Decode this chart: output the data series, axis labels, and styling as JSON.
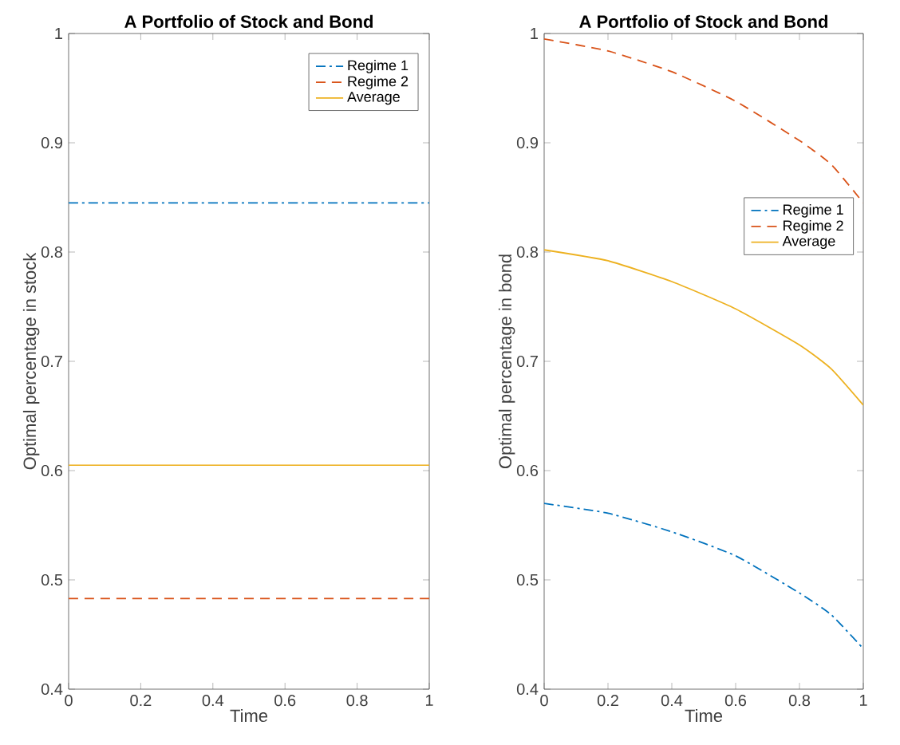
{
  "chart_data": [
    {
      "type": "line",
      "title": "A Portfolio of Stock and Bond",
      "xlabel": "Time",
      "ylabel": "Optimal percentage in stock",
      "x": [
        0,
        1
      ],
      "xlim": [
        0,
        1
      ],
      "ylim": [
        0.4,
        1
      ],
      "xticks": [
        0,
        0.2,
        0.4,
        0.6,
        0.8,
        1
      ],
      "yticks": [
        0.4,
        0.5,
        0.6,
        0.7,
        0.8,
        0.9,
        1
      ],
      "legend": "top right",
      "marker": "none",
      "grid": false,
      "series": [
        {
          "name": "Regime 1",
          "color": "#0072bd",
          "line_style": "dashdot",
          "values": [
            0.845,
            0.845
          ]
        },
        {
          "name": "Regime 2",
          "color": "#d95319",
          "line_style": "dashed",
          "values": [
            0.483,
            0.483
          ]
        },
        {
          "name": "Average",
          "color": "#edb120",
          "line_style": "solid",
          "values": [
            0.605,
            0.605
          ]
        }
      ]
    },
    {
      "type": "line",
      "title": "A Portfolio of Stock and Bond",
      "xlabel": "Time",
      "ylabel": "Optimal percentage in bond",
      "x": [
        0,
        0.2,
        0.4,
        0.6,
        0.8,
        0.9,
        1
      ],
      "xlim": [
        0,
        1
      ],
      "ylim": [
        0.4,
        1
      ],
      "xticks": [
        0,
        0.2,
        0.4,
        0.6,
        0.8,
        1
      ],
      "yticks": [
        0.4,
        0.5,
        0.6,
        0.7,
        0.8,
        0.9,
        1
      ],
      "legend": "right",
      "marker": "none",
      "grid": false,
      "series": [
        {
          "name": "Regime 1",
          "color": "#0072bd",
          "line_style": "dashdot",
          "values": [
            0.57,
            0.561,
            0.544,
            0.522,
            0.488,
            0.468,
            0.437
          ]
        },
        {
          "name": "Regime 2",
          "color": "#d95319",
          "line_style": "dashed",
          "values": [
            0.995,
            0.984,
            0.965,
            0.938,
            0.902,
            0.88,
            0.845
          ]
        },
        {
          "name": "Average",
          "color": "#edb120",
          "line_style": "solid",
          "values": [
            0.802,
            0.792,
            0.773,
            0.748,
            0.715,
            0.693,
            0.66
          ]
        }
      ]
    }
  ]
}
